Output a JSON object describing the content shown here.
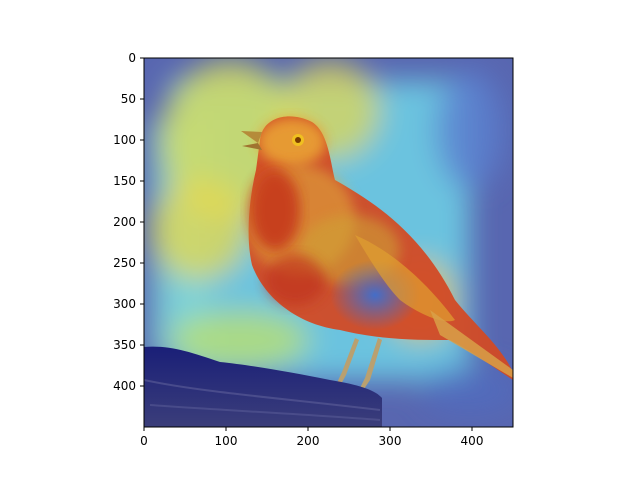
{
  "image": {
    "subject": "bird-photo",
    "overlay": "jet-colormap-saliency-heatmap"
  },
  "axes": {
    "x_range": [
      0,
      450
    ],
    "y_range": [
      0,
      450
    ],
    "y_inverted": true,
    "x_ticks": [
      0,
      100,
      200,
      300,
      400
    ],
    "y_ticks": [
      0,
      50,
      100,
      150,
      200,
      250,
      300,
      350,
      400
    ],
    "x_tick_labels": [
      "0",
      "100",
      "200",
      "300",
      "400"
    ],
    "y_tick_labels": [
      "0",
      "50",
      "100",
      "150",
      "200",
      "250",
      "300",
      "350",
      "400"
    ]
  },
  "colors": {
    "axis": "#000000",
    "background": "#ffffff",
    "heat_low": "#2b3fa0",
    "heat_mid_cyan": "#6fd3e8",
    "heat_mid_yellow": "#e8d84a",
    "heat_high": "#d22a1a"
  }
}
